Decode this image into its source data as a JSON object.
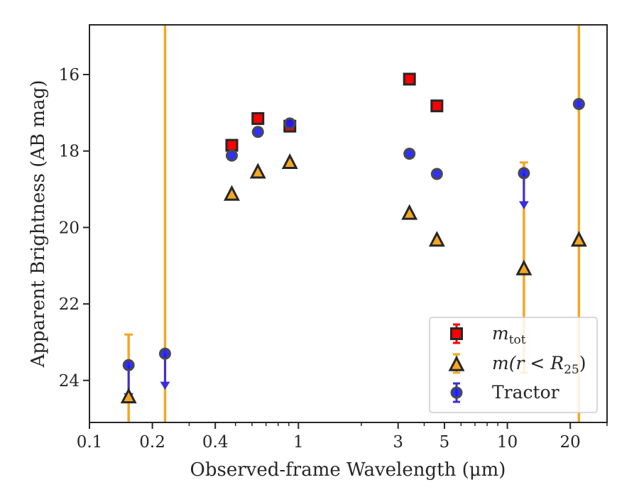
{
  "chart_data": {
    "type": "scatter",
    "xlabel": "Observed-frame Wavelength (μm)",
    "ylabel": "Apparent Brightness (AB mag)",
    "xscale": "log",
    "xlim": [
      0.1,
      30
    ],
    "ylim": [
      25.1,
      14.7
    ],
    "y_inverted": true,
    "x_ticks": [
      0.1,
      0.2,
      0.4,
      1,
      3,
      5,
      10,
      20
    ],
    "x_tick_labels": [
      "0.1",
      "0.2",
      "0.4",
      "1",
      "3",
      "5",
      "10",
      "20"
    ],
    "y_ticks": [
      16,
      18,
      20,
      22,
      24
    ],
    "y_tick_labels": [
      "16",
      "18",
      "20",
      "22",
      "24"
    ],
    "legend": {
      "placement": "lower-right",
      "entries": [
        {
          "label": "m",
          "sub": "tot",
          "series": "mtot"
        },
        {
          "label": "m(r < R",
          "sub": "25",
          "suffix": ")",
          "series": "mr25"
        },
        {
          "label": "Tractor",
          "series": "tractor"
        }
      ]
    },
    "colors": {
      "mtot": "#ff0000",
      "mr25": "#f5a623",
      "mr25_err": "#f5a623",
      "tractor": "#1a1aff",
      "tractor_err": "#3b2fd9",
      "edge": "#262626"
    },
    "series": [
      {
        "key": "mtot",
        "marker": "square",
        "points": [
          {
            "x": 0.48,
            "y": 17.85
          },
          {
            "x": 0.64,
            "y": 17.15
          },
          {
            "x": 0.91,
            "y": 17.35
          },
          {
            "x": 3.4,
            "y": 16.12
          },
          {
            "x": 4.6,
            "y": 16.82
          }
        ]
      },
      {
        "key": "mr25",
        "marker": "triangle",
        "points": [
          {
            "x": 0.154,
            "y": 24.4,
            "err_low": 22.8,
            "err_high": 25.1
          },
          {
            "x": 0.23,
            "y": null,
            "err_low": 14.7,
            "err_high": 25.1
          },
          {
            "x": 0.48,
            "y": 19.1
          },
          {
            "x": 0.64,
            "y": 18.52
          },
          {
            "x": 0.91,
            "y": 18.27
          },
          {
            "x": 3.4,
            "y": 19.6
          },
          {
            "x": 4.6,
            "y": 20.3
          },
          {
            "x": 12,
            "y": 21.05,
            "err_low": 18.3,
            "err_high": 23.8
          },
          {
            "x": 22,
            "y": 20.3,
            "err_low": 14.7,
            "err_high": 25.1
          }
        ]
      },
      {
        "key": "tractor",
        "marker": "circle",
        "points": [
          {
            "x": 0.154,
            "y": 23.6,
            "upper_limit": true
          },
          {
            "x": 0.23,
            "y": 23.3,
            "upper_limit": true
          },
          {
            "x": 0.48,
            "y": 18.12
          },
          {
            "x": 0.64,
            "y": 17.5
          },
          {
            "x": 0.91,
            "y": 17.28
          },
          {
            "x": 3.4,
            "y": 18.07
          },
          {
            "x": 4.6,
            "y": 18.6
          },
          {
            "x": 12,
            "y": 18.58,
            "upper_limit": true
          },
          {
            "x": 22,
            "y": 16.77
          }
        ]
      }
    ]
  }
}
